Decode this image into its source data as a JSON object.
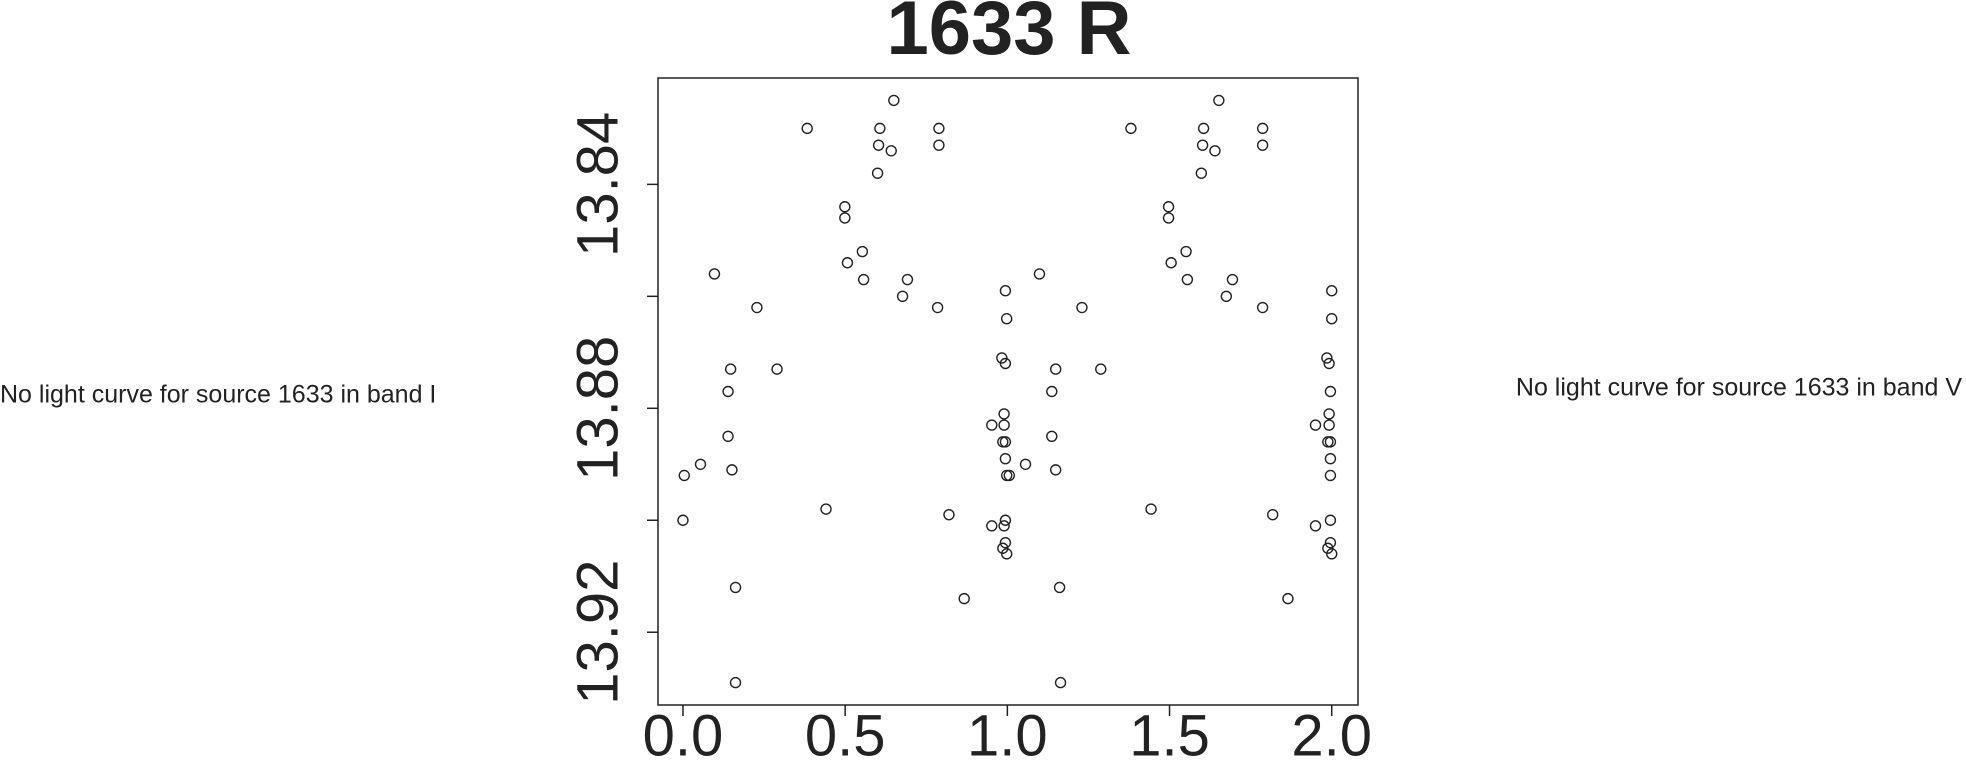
{
  "chart_data": {
    "type": "scatter",
    "title": "1633 R",
    "annotations": [
      "No light curve for source 1633 in band I",
      "No light curve for source 1633 in band V"
    ],
    "color": "#222222",
    "xlim": [
      -0.077,
      2.081
    ],
    "ylim": [
      13.933,
      13.821
    ],
    "xticks": [
      {
        "value": 0,
        "label": "0.0"
      },
      0.5,
      {
        "value": 1,
        "label": "1.0"
      },
      1.5,
      {
        "value": 2,
        "label": "2.0"
      }
    ],
    "yticks": [
      13.84,
      13.86,
      13.88,
      13.9,
      13.92
    ],
    "ytick_labels_shown": [
      true,
      false,
      true,
      false,
      true
    ],
    "x": [
      0.0,
      0.004,
      0.054,
      0.097,
      0.147,
      0.139,
      0.139,
      0.151,
      0.162,
      0.162,
      0.228,
      0.29,
      0.383,
      0.441,
      0.499,
      0.499,
      0.507,
      0.553,
      0.557,
      0.6,
      0.603,
      0.607,
      0.642,
      0.65,
      0.677,
      0.692,
      0.785,
      0.789,
      0.789,
      0.82,
      0.867,
      0.952,
      0.952,
      0.983,
      0.994,
      0.994,
      0.998,
      0.99,
      0.99,
      0.986,
      0.994,
      0.994,
      0.998,
      1.006,
      0.994,
      0.99,
      0.994,
      0.986,
      0.998,
      1.056,
      1.099,
      1.149,
      1.137,
      1.137,
      1.149,
      1.161,
      1.164,
      1.23,
      1.288,
      1.381,
      1.443,
      1.497,
      1.497,
      1.505,
      1.551,
      1.555,
      1.598,
      1.602,
      1.605,
      1.64,
      1.652,
      1.675,
      1.694,
      1.787,
      1.787,
      1.787,
      1.818,
      1.865,
      1.95,
      1.95,
      2.0,
      2.0,
      1.985,
      1.992,
      1.996,
      1.992,
      1.992,
      1.988,
      1.996,
      1.996,
      1.996,
      1.996,
      1.996,
      1.988,
      2.0
    ],
    "y": [
      13.9,
      13.892,
      13.89,
      13.856,
      13.873,
      13.877,
      13.885,
      13.891,
      13.912,
      13.929,
      13.862,
      13.873,
      13.83,
      13.898,
      13.844,
      13.846,
      13.854,
      13.852,
      13.857,
      13.838,
      13.833,
      13.83,
      13.834,
      13.825,
      13.86,
      13.857,
      13.862,
      13.83,
      13.833,
      13.899,
      13.914,
      13.883,
      13.901,
      13.871,
      13.872,
      13.859,
      13.864,
      13.881,
      13.883,
      13.886,
      13.886,
      13.889,
      13.892,
      13.892,
      13.9,
      13.901,
      13.904,
      13.905,
      13.906,
      13.89,
      13.856,
      13.873,
      13.877,
      13.885,
      13.891,
      13.912,
      13.929,
      13.862,
      13.873,
      13.83,
      13.898,
      13.844,
      13.846,
      13.854,
      13.852,
      13.857,
      13.838,
      13.833,
      13.83,
      13.834,
      13.825,
      13.86,
      13.857,
      13.862,
      13.83,
      13.833,
      13.899,
      13.914,
      13.883,
      13.901,
      13.859,
      13.864,
      13.871,
      13.872,
      13.877,
      13.881,
      13.883,
      13.886,
      13.886,
      13.889,
      13.892,
      13.9,
      13.904,
      13.905,
      13.906
    ]
  }
}
